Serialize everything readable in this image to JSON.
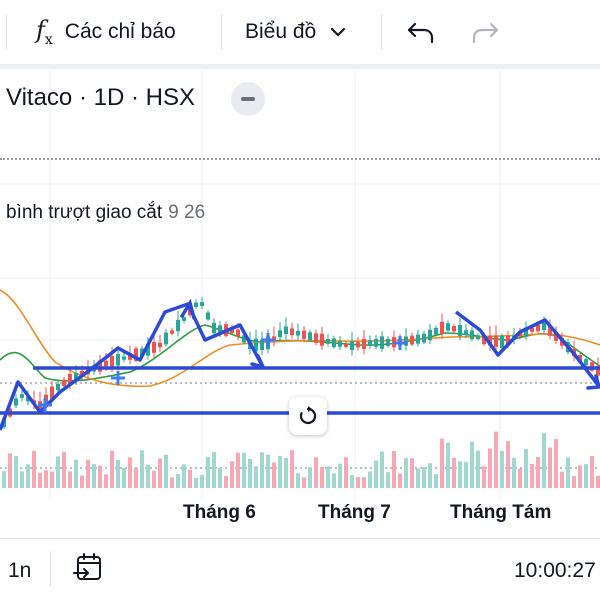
{
  "toolbar": {
    "indicators_label": "Các chỉ báo",
    "chart_type_label": "Biểu đồ",
    "icons": [
      "fx-icon",
      "chevron-down-icon",
      "undo-icon",
      "redo-icon"
    ]
  },
  "legend": {
    "symbol": "Vitaco · 1D · HSX",
    "indicator_name": "bình trượt giao cắt",
    "indicator_values": "9 26"
  },
  "x_axis": {
    "labels": [
      "Tháng 6",
      "Tháng 7",
      "Tháng Tám"
    ]
  },
  "bottom": {
    "range_label": "1n",
    "clock": "10:00:27"
  },
  "colors": {
    "up": "#26a69a",
    "down": "#ef5350",
    "annotation": "#2b4bd6",
    "ma_fast": "#2e9e3e",
    "ma_slow": "#f08c21"
  },
  "chart_data": {
    "type": "candlestick",
    "title": "Vitaco · 1D · HSX",
    "x_ticks": [
      "Tháng 6",
      "Tháng 7",
      "Tháng Tám"
    ],
    "y_axis_visible": false,
    "grid": true,
    "series_moving_averages": [
      9,
      26
    ],
    "notes": "Candlestick price chart with volume histogram and two moving averages; price values are not printed on screen."
  }
}
